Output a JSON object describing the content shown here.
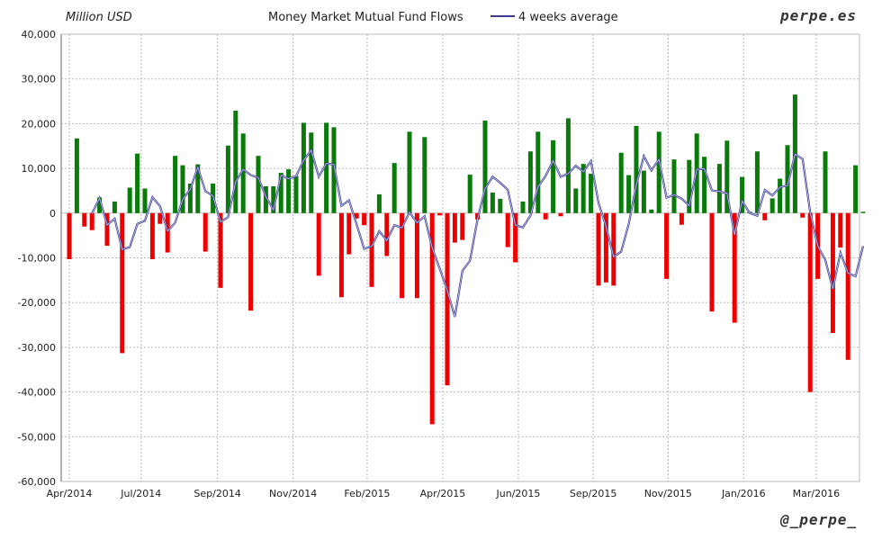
{
  "chart_data": {
    "type": "bar",
    "title": "Money Market Mutual Fund Flows",
    "ylabel": "Million USD",
    "xlabel": "",
    "ylim": [
      -60000,
      40000
    ],
    "yticks": [
      "40,000",
      "30,000",
      "20,000",
      "10,000",
      "0",
      "-10,000",
      "-20,000",
      "-30,000",
      "-40,000",
      "-50,000",
      "-60,000"
    ],
    "ytick_values": [
      40000,
      30000,
      20000,
      10000,
      0,
      -10000,
      -20000,
      -30000,
      -40000,
      -50000,
      -60000
    ],
    "xticks": [
      {
        "label": "Apr/2014",
        "week": 0
      },
      {
        "label": "Jul/2014",
        "week": 9.5
      },
      {
        "label": "Sep/2014",
        "week": 19.6
      },
      {
        "label": "Nov/2014",
        "week": 29.6
      },
      {
        "label": "Feb/2015",
        "week": 39.4
      },
      {
        "label": "Apr/2015",
        "week": 49.4
      },
      {
        "label": "Jun/2015",
        "week": 59.4
      },
      {
        "label": "Sep/2015",
        "week": 69.3
      },
      {
        "label": "Nov/2015",
        "week": 79.2
      },
      {
        "label": "Jan/2016",
        "week": 89.2
      },
      {
        "label": "Mar/2016",
        "week": 98.8
      }
    ],
    "grid": true,
    "legend": {
      "label": "4 weeks average",
      "placement": "top"
    },
    "colors": {
      "positive": "#0a7a0a",
      "negative": "#ee0000",
      "line": "#3b3b8f"
    },
    "values": [
      -10300,
      16700,
      -3000,
      -3800,
      3500,
      -7300,
      2600,
      -31300,
      5700,
      13300,
      5500,
      -10300,
      -2400,
      -8800,
      12800,
      10700,
      6600,
      10900,
      -8600,
      6600,
      -16700,
      15100,
      22900,
      17800,
      -21800,
      12800,
      6000,
      6000,
      9000,
      9800,
      8300,
      20200,
      18000,
      -14000,
      20200,
      19200,
      -18800,
      -9200,
      -1200,
      -2700,
      -16500,
      4200,
      -9600,
      11200,
      -19000,
      18200,
      -19000,
      17000,
      -47200,
      -500,
      -38500,
      -6600,
      -6000,
      8600,
      -1400,
      20700,
      4600,
      3200,
      -7600,
      -11000,
      2600,
      13800,
      18200,
      -1400,
      16300,
      -700,
      21200,
      5500,
      11000,
      8800,
      -16200,
      -15500,
      -16200,
      13500,
      8500,
      19500,
      9500,
      800,
      18200,
      -14700,
      12000,
      -2600,
      11900,
      17800,
      12600,
      -22000,
      11000,
      16200,
      -24500,
      8100,
      300,
      13800,
      -1600,
      3300,
      7700,
      15200,
      26500,
      -1000,
      -40000,
      -14700,
      13800,
      -26800,
      -7700,
      -32800,
      10700,
      300
    ]
  },
  "header": {
    "unit": "Million USD",
    "title": "Money Market Mutual Fund Flows",
    "legend": "4 weeks average",
    "brand": "perpe.es"
  },
  "footer": {
    "handle": "@_perpe_"
  }
}
